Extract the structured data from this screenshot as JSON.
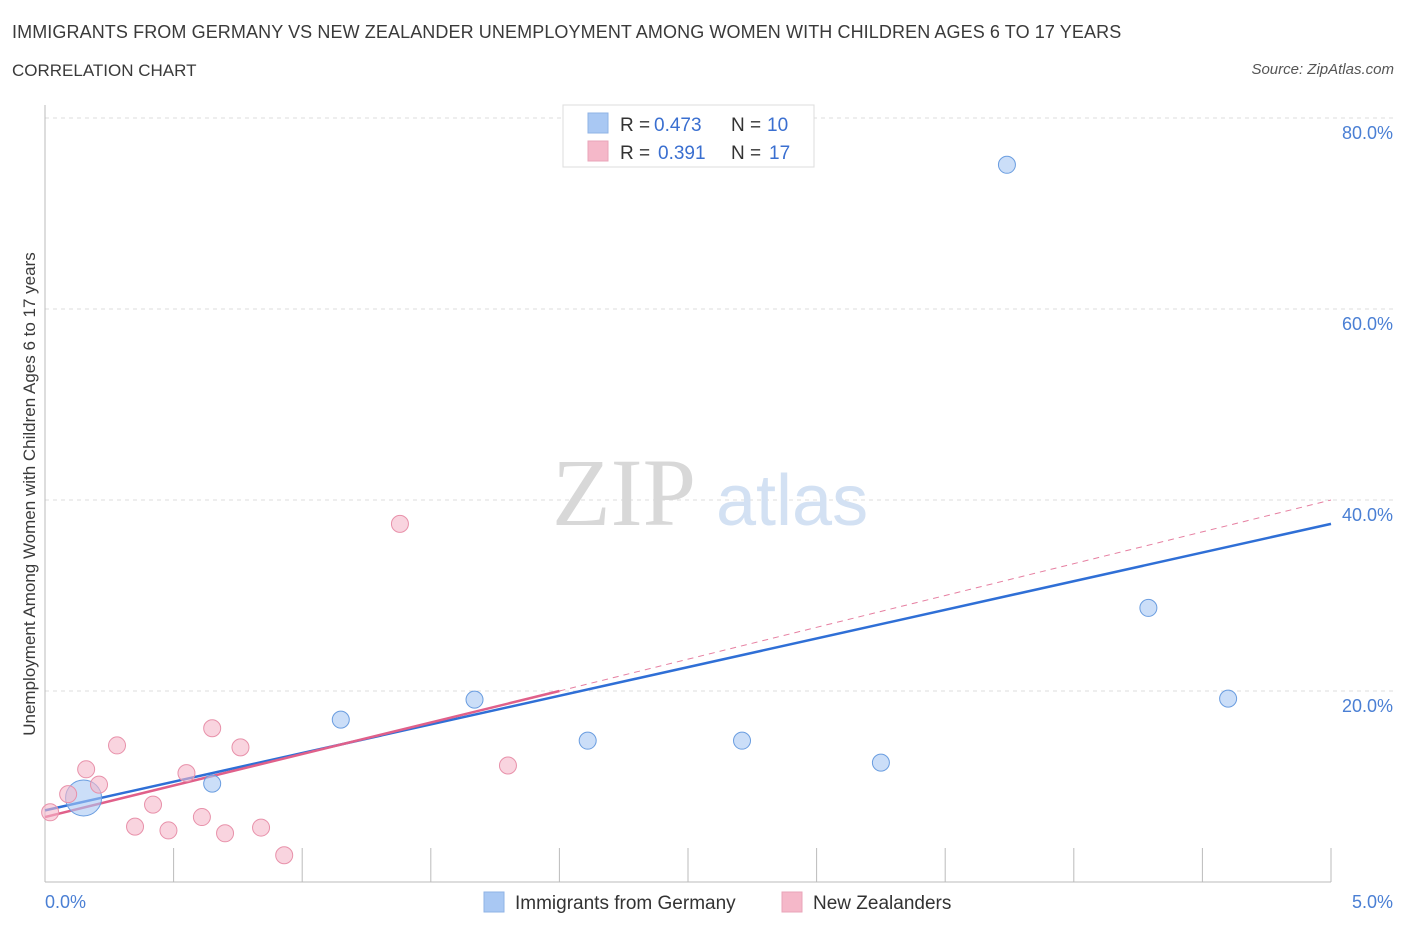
{
  "header": {
    "title": "IMMIGRANTS FROM GERMANY VS NEW ZEALANDER UNEMPLOYMENT AMONG WOMEN WITH CHILDREN AGES 6 TO 17 YEARS",
    "subtitle": "CORRELATION CHART",
    "source": "Source: ZipAtlas.com"
  },
  "legend_box": {
    "rows": [
      {
        "r_label": "R =",
        "r_value": "0.473",
        "n_label": "N =",
        "n_value": "10",
        "color": "#a9c8f3"
      },
      {
        "r_label": "R =",
        "r_value": "0.391",
        "n_label": "N =",
        "n_value": "17",
        "color": "#f5b8c9"
      }
    ]
  },
  "watermark": {
    "zip": "ZIP",
    "atlas": "atlas"
  },
  "chart_data": {
    "type": "scatter",
    "title": "IMMIGRANTS FROM GERMANY VS NEW ZEALANDER UNEMPLOYMENT AMONG WOMEN WITH CHILDREN AGES 6 TO 17 YEARS",
    "xlabel": "",
    "ylabel": "Unemployment Among Women with Children Ages 6 to 17 years",
    "xlim": [
      0,
      5
    ],
    "ylim": [
      0,
      80
    ],
    "x_tick_labels": [
      "0.0%",
      "5.0%"
    ],
    "y_tick_values": [
      20,
      40,
      60,
      80
    ],
    "y_tick_labels": [
      "20.0%",
      "40.0%",
      "60.0%",
      "80.0%"
    ],
    "grid": true,
    "series": [
      {
        "name": "Immigrants from Germany",
        "color": "#a9c8f3",
        "stroke": "#6a9de0",
        "line_color": "#2f6fd6",
        "points": [
          {
            "x": 0.15,
            "y": 8.8,
            "size": "large"
          },
          {
            "x": 0.65,
            "y": 10.3
          },
          {
            "x": 1.15,
            "y": 17.0
          },
          {
            "x": 1.67,
            "y": 19.1
          },
          {
            "x": 2.11,
            "y": 14.8
          },
          {
            "x": 2.71,
            "y": 14.8
          },
          {
            "x": 3.25,
            "y": 12.5
          },
          {
            "x": 3.74,
            "y": 75.1
          },
          {
            "x": 4.29,
            "y": 28.7
          },
          {
            "x": 4.6,
            "y": 19.2
          }
        ],
        "trend": {
          "x": [
            0,
            5
          ],
          "y": [
            7.5,
            37.5
          ],
          "style": "solid"
        }
      },
      {
        "name": "New Zealanders",
        "color": "#f5b8c9",
        "stroke": "#e891aa",
        "line_color": "#e0608a",
        "points": [
          {
            "x": 0.02,
            "y": 7.3
          },
          {
            "x": 0.09,
            "y": 9.2
          },
          {
            "x": 0.16,
            "y": 11.8
          },
          {
            "x": 0.21,
            "y": 10.2
          },
          {
            "x": 0.28,
            "y": 14.3
          },
          {
            "x": 0.35,
            "y": 5.8
          },
          {
            "x": 0.42,
            "y": 8.1
          },
          {
            "x": 0.48,
            "y": 5.4
          },
          {
            "x": 0.55,
            "y": 11.4
          },
          {
            "x": 0.61,
            "y": 6.8
          },
          {
            "x": 0.65,
            "y": 16.1
          },
          {
            "x": 0.7,
            "y": 5.1
          },
          {
            "x": 0.76,
            "y": 14.1
          },
          {
            "x": 0.84,
            "y": 5.7
          },
          {
            "x": 0.93,
            "y": 2.8
          },
          {
            "x": 1.38,
            "y": 37.5
          },
          {
            "x": 1.8,
            "y": 12.2
          }
        ],
        "trend": {
          "x": [
            0,
            2.0
          ],
          "y": [
            6.8,
            20.0
          ],
          "style": "solid"
        },
        "trend_extension": {
          "x": [
            2.0,
            5
          ],
          "y": [
            20.0,
            40.0
          ],
          "style": "dashed"
        }
      }
    ]
  }
}
